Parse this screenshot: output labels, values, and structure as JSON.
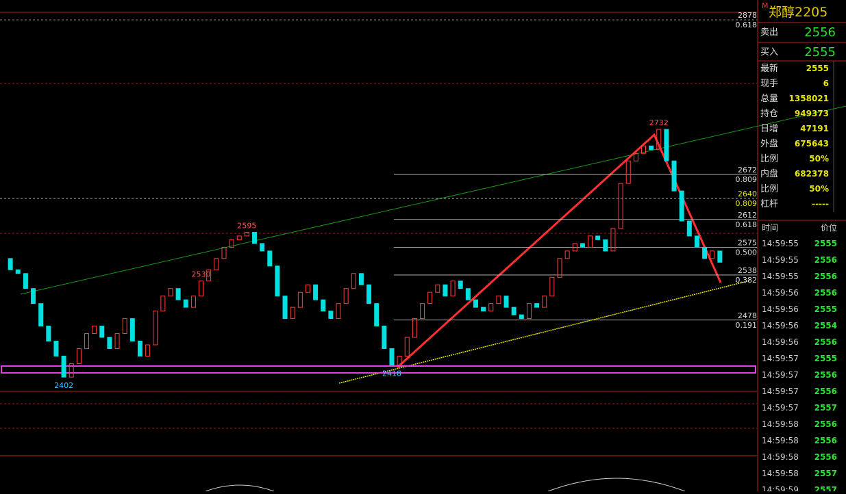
{
  "kline": {
    "ylim": [
      2383,
      2888
    ],
    "closes": [
      2560,
      2545,
      2540,
      2520,
      2500,
      2470,
      2450,
      2430,
      2402,
      2420,
      2440,
      2460,
      2470,
      2455,
      2440,
      2460,
      2480,
      2450,
      2430,
      2445,
      2490,
      2510,
      2520,
      2505,
      2495,
      2510,
      2530,
      2545,
      2560,
      2575,
      2585,
      2590,
      2595,
      2580,
      2570,
      2550,
      2510,
      2480,
      2495,
      2515,
      2525,
      2505,
      2490,
      2480,
      2500,
      2520,
      2540,
      2525,
      2500,
      2470,
      2440,
      2418,
      2430,
      2455,
      2480,
      2500,
      2515,
      2525,
      2510,
      2530,
      2520,
      2505,
      2495,
      2490,
      2500,
      2510,
      2495,
      2485,
      2480,
      2500,
      2495,
      2510,
      2535,
      2560,
      2570,
      2580,
      2575,
      2590,
      2585,
      2570,
      2600,
      2660,
      2690,
      2700,
      2710,
      2705,
      2732,
      2690,
      2650,
      2610,
      2590,
      2575,
      2560,
      2570,
      2555
    ],
    "fib_levels": [
      {
        "price": 2878,
        "ratio": "0.618",
        "dashed": true
      },
      {
        "price": 2672,
        "ratio": "0.809"
      },
      {
        "price": 2640,
        "ratio": "0.809",
        "dashed": true
      },
      {
        "price": 2612,
        "ratio": "0.618"
      },
      {
        "price": 2575,
        "ratio": "0.500"
      },
      {
        "price": 2538,
        "ratio": "0.382"
      },
      {
        "price": 2478,
        "ratio": "0.191"
      }
    ],
    "point_labels": [
      2595,
      2402,
      2418,
      2732,
      2530
    ]
  },
  "quote": {
    "title": "郑醇2205",
    "sell_label": "卖出",
    "sell": 2556,
    "buy_label": "买入",
    "buy": 2555,
    "rows": [
      [
        "最新",
        "2555"
      ],
      [
        "现手",
        "6"
      ],
      [
        "总量",
        "1358021"
      ],
      [
        "持仓",
        "949373"
      ],
      [
        "日增",
        "47191"
      ],
      [
        "外盘",
        "675643"
      ],
      [
        "比例",
        "50%"
      ],
      [
        "内盘",
        "682378"
      ],
      [
        "比例",
        "50%"
      ],
      [
        "杠杆",
        "-----"
      ]
    ],
    "ticks_header": [
      "时间",
      "价位"
    ],
    "ticks": [
      [
        "14:59:55",
        "2555"
      ],
      [
        "14:59:55",
        "2556"
      ],
      [
        "14:59:55",
        "2556"
      ],
      [
        "14:59:56",
        "2556"
      ],
      [
        "14:59:56",
        "2555"
      ],
      [
        "14:59:56",
        "2554"
      ],
      [
        "14:59:56",
        "2556"
      ],
      [
        "14:59:57",
        "2555"
      ],
      [
        "14:59:57",
        "2556"
      ],
      [
        "14:59:57",
        "2556"
      ],
      [
        "14:59:57",
        "2557"
      ],
      [
        "14:59:58",
        "2556"
      ],
      [
        "14:59:58",
        "2556"
      ],
      [
        "14:59:58",
        "2556"
      ],
      [
        "14:59:58",
        "2557"
      ],
      [
        "14:59:59",
        "2557"
      ]
    ]
  }
}
